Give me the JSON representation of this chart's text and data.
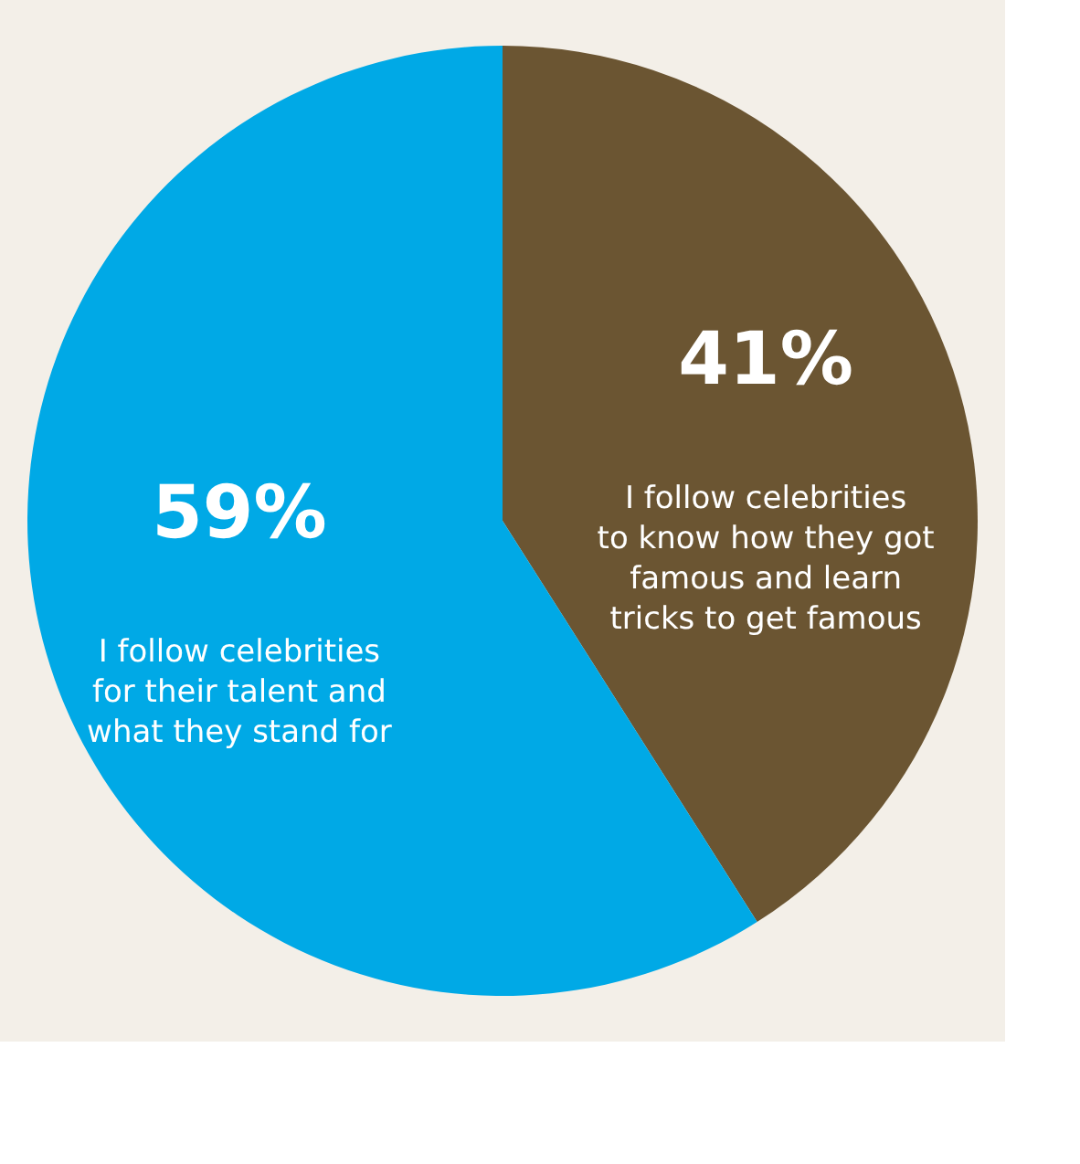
{
  "chart_data": {
    "type": "pie",
    "categories": [
      "I follow celebrities to know how they got famous and learn tricks to get famous",
      "I follow celebrities for their talent and what they stand for"
    ],
    "values": [
      41,
      59
    ],
    "value_labels": [
      "41%",
      "59%"
    ],
    "colors": [
      "#6b5532",
      "#00a9e6"
    ],
    "legend": false
  }
}
